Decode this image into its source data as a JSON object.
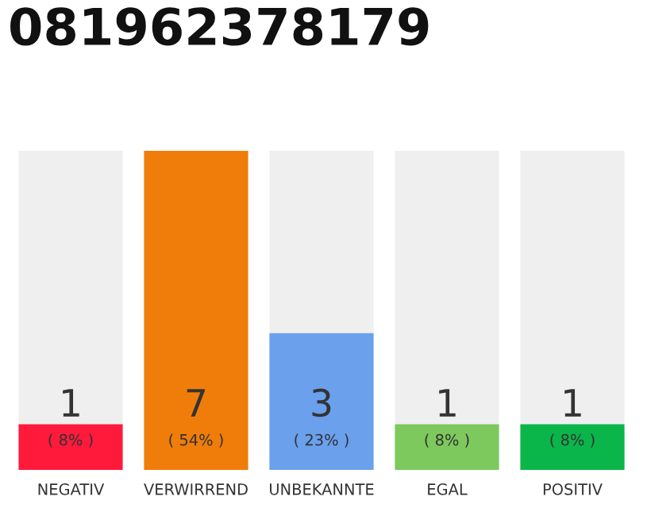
{
  "chart_data": {
    "type": "bar",
    "title": "081962378179",
    "categories": [
      "NEGATIV",
      "VERWIRREND",
      "UNBEKANNTE",
      "EGAL",
      "POSITIV"
    ],
    "values": [
      1,
      7,
      3,
      1,
      1
    ],
    "colors": [
      "#ff1a3c",
      "#f07d0a",
      "#6aa0ec",
      "#7dc95e",
      "#0ab54a"
    ],
    "ylim": [
      0,
      7
    ],
    "data_labels": true,
    "annotations": [
      "( 8% )",
      "( 54% )",
      "( 23% )",
      "( 8% )",
      "( 8% )"
    ],
    "grid": false,
    "tick_labels": "x"
  }
}
